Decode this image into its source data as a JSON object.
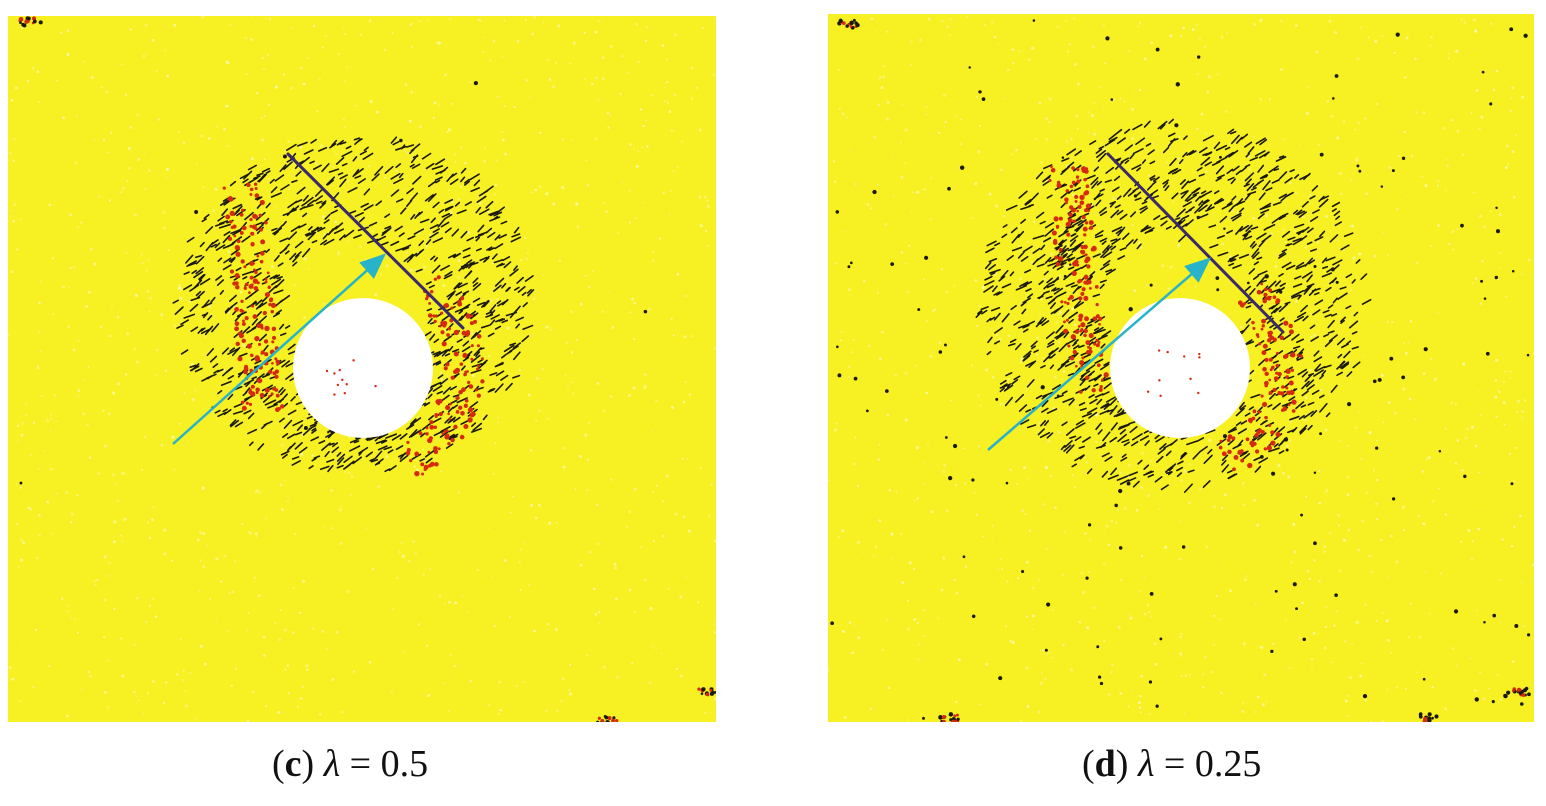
{
  "figure": {
    "panels": [
      {
        "id": "c",
        "caption_open": "(",
        "caption_letter": "c",
        "caption_close": ")",
        "caption_symbol": "λ",
        "caption_rest": " = 0.5"
      },
      {
        "id": "d",
        "caption_open": "(",
        "caption_letter": "d",
        "caption_close": ")",
        "caption_symbol": "λ",
        "caption_rest": " = 0.25"
      }
    ]
  },
  "colors": {
    "background": "#f7f022",
    "hole": "#ffffff",
    "crack_dark": "#1a1a12",
    "crack_red": "#d62a10",
    "joint_line": "#3a2a6a",
    "arrow": "#27b3c9"
  }
}
